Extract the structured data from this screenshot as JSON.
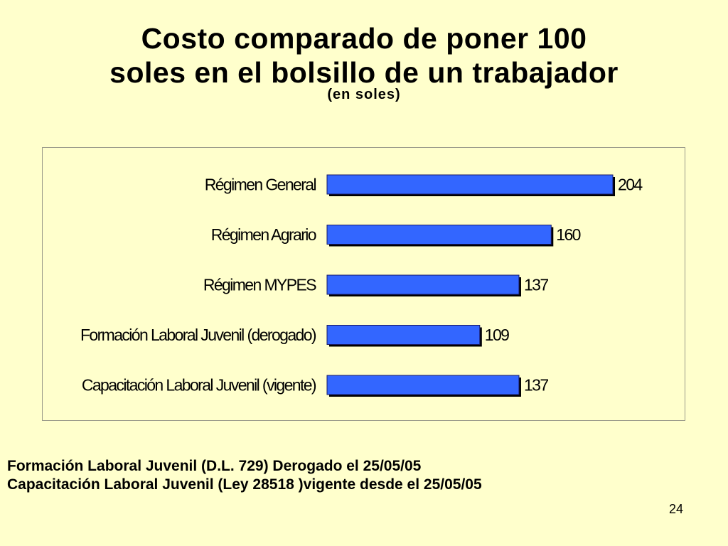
{
  "title": {
    "line1": "Costo comparado de poner 100",
    "line2": "soles en el bolsillo de un trabajador",
    "subtitle": "(en soles)"
  },
  "chart_data": {
    "type": "bar",
    "orientation": "horizontal",
    "title": "Costo comparado de poner 100 soles en el bolsillo de un trabajador",
    "subtitle": "(en soles)",
    "categories": [
      "Régimen General",
      "Régimen Agrario",
      "Régimen MYPES",
      "Formación Laboral Juvenil (derogado)",
      "Capacitación Laboral Juvenil (vigente)"
    ],
    "values": [
      204,
      160,
      137,
      109,
      137
    ],
    "value_labels": [
      "204",
      "160",
      "137",
      "109",
      "137"
    ],
    "xlabel": "",
    "ylabel": "",
    "xlim": [
      0,
      204
    ],
    "grid": false,
    "legend": "none",
    "colors": {
      "bar": "#3366ff",
      "bar_shadow": "#000000",
      "plot_border": "#9a9a8a"
    }
  },
  "notes": {
    "line1": "Formación Laboral Juvenil (D.L. 729) Derogado el 25/05/05",
    "line2": "Capacitación Laboral Juvenil (Ley 28518 )vigente desde el 25/05/05"
  },
  "page_number": "24"
}
